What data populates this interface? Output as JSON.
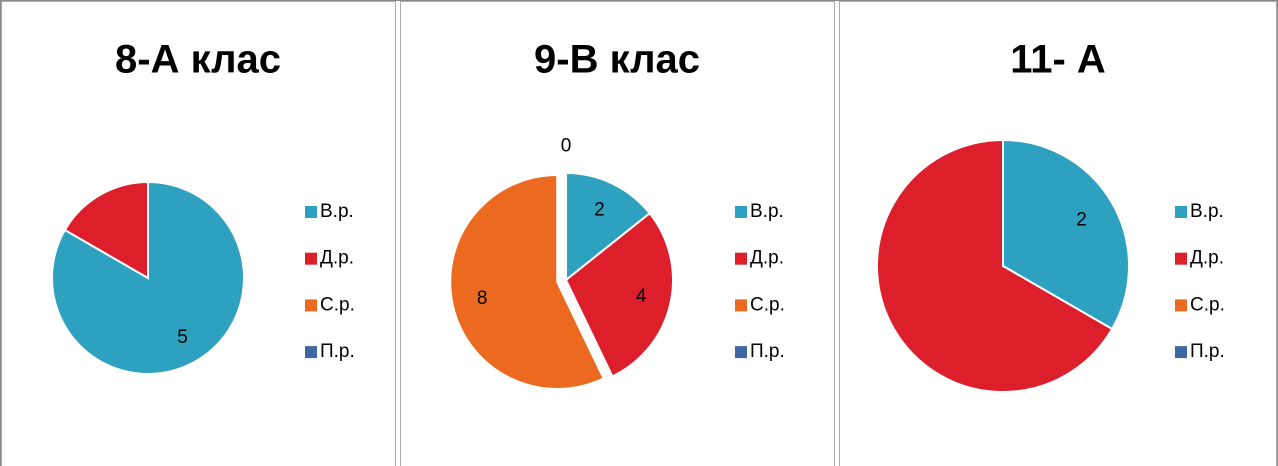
{
  "chart_data": [
    {
      "type": "pie",
      "title": "8-А клас",
      "categories": [
        "В.р.",
        "Д.р.",
        "С.р.",
        "П.р."
      ],
      "values": [
        5,
        1,
        0,
        0
      ],
      "value_labels": [
        "5",
        null,
        null,
        null
      ],
      "colors": [
        "#2ea1c1",
        "#dc1f2b",
        "#ec6a1f",
        "#3e67a3"
      ],
      "legend": "right"
    },
    {
      "type": "pie",
      "title": "9-В клас",
      "categories": [
        "В.р.",
        "Д.р.",
        "С.р.",
        "П.р."
      ],
      "values": [
        2,
        4,
        8,
        0
      ],
      "colors": [
        "#2ea1c1",
        "#dc1f2b",
        "#ec6a1f",
        "#3e67a3"
      ],
      "legend": "right",
      "exploded": "С.р."
    },
    {
      "type": "pie",
      "title": "11- А",
      "categories": [
        "В.р.",
        "Д.р.",
        "С.р.",
        "П.р."
      ],
      "values": [
        2,
        4,
        0,
        0
      ],
      "value_labels": [
        "2",
        null,
        null,
        null
      ],
      "colors": [
        "#2ea1c1",
        "#dc1f2b",
        "#ec6a1f",
        "#3e67a3"
      ],
      "legend": "right"
    }
  ]
}
